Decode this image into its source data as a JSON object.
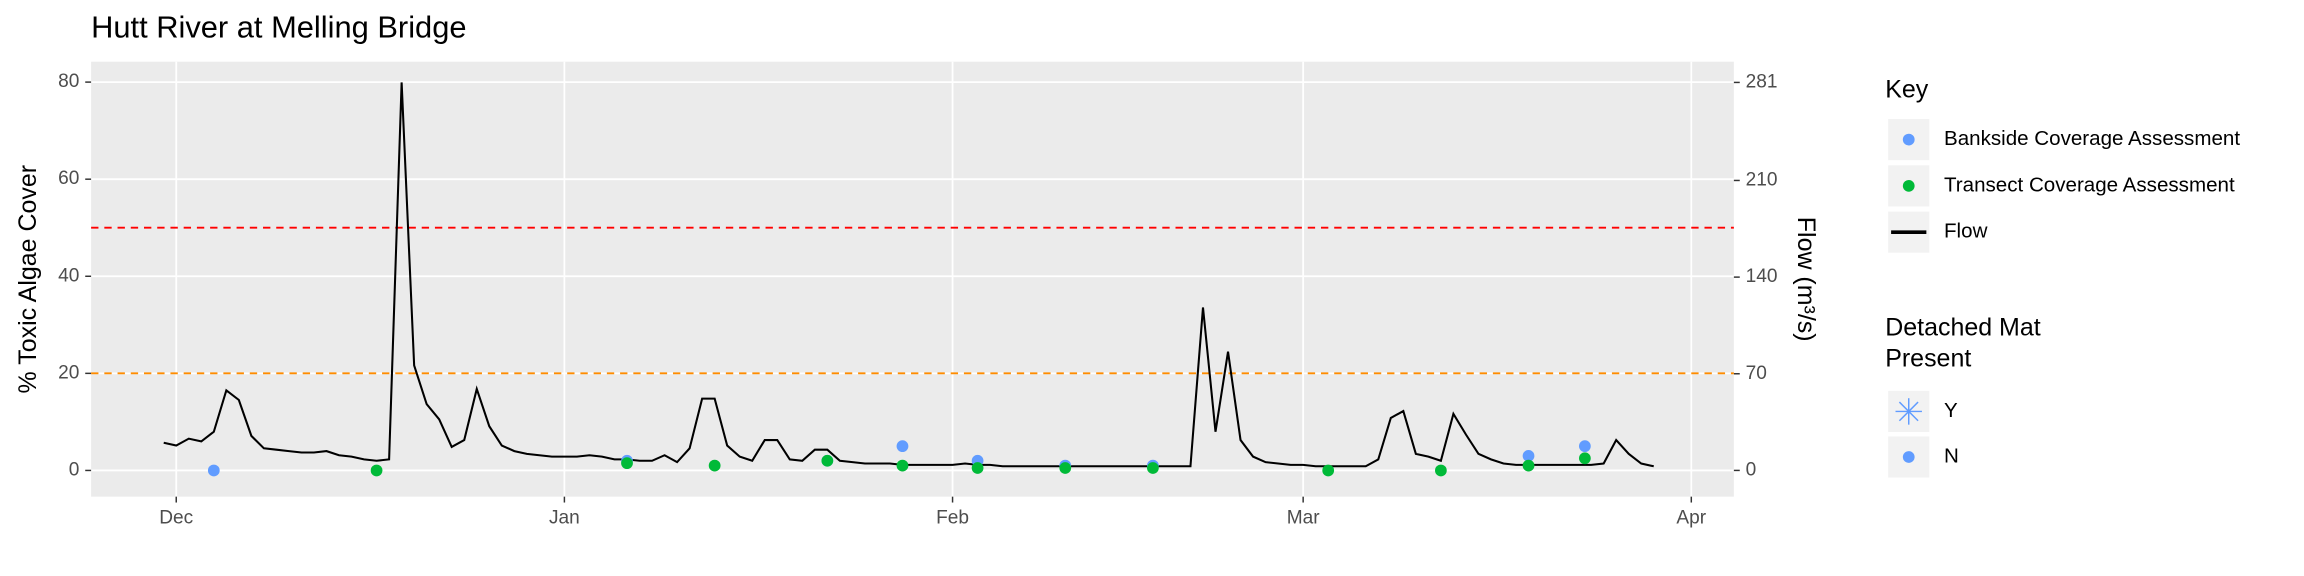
{
  "chart_data": {
    "type": "line",
    "title": "Hutt River at Melling Bridge",
    "y_label": "% Toxic Algae Cover",
    "y2_label": "Flow (m³/s)",
    "xlim": [
      -6.8,
      124.4
    ],
    "xticks": [
      {
        "value": 0,
        "label": "Dec"
      },
      {
        "value": 31,
        "label": "Jan"
      },
      {
        "value": 62,
        "label": "Feb"
      },
      {
        "value": 90,
        "label": "Mar"
      },
      {
        "value": 121,
        "label": "Apr"
      }
    ],
    "ylim": [
      -5.4,
      84.2
    ],
    "yticks": [
      0,
      20,
      40,
      60,
      80
    ],
    "y2lim": [
      -19,
      296
    ],
    "y2ticks": [
      0,
      70,
      140,
      210,
      281
    ],
    "grid": true,
    "hlines": [
      {
        "value": 50,
        "color": "#ff0000"
      },
      {
        "value": 20,
        "color": "#ff8c00"
      }
    ],
    "legend_title": "Key",
    "series": [
      {
        "name": "Bankside Coverage Assessment",
        "type": "scatter",
        "color": "#619cff",
        "x": [
          3,
          36,
          52,
          58,
          64,
          71,
          78,
          108,
          112.5
        ],
        "values": [
          0,
          2,
          2,
          5,
          2,
          1,
          1,
          3,
          5
        ]
      },
      {
        "name": "Transect Coverage Assessment",
        "type": "scatter",
        "color": "#00ba38",
        "x": [
          16,
          36,
          43,
          52,
          58,
          64,
          71,
          78,
          92,
          101,
          108,
          112.5
        ],
        "values": [
          0,
          1.5,
          1,
          2,
          1,
          0.5,
          0.5,
          0.5,
          0,
          0,
          1,
          2.5
        ]
      },
      {
        "name": "Flow",
        "type": "line",
        "axis": "y2",
        "color": "#000000",
        "x": [
          -1,
          0,
          1,
          2,
          3,
          4,
          5,
          6,
          7,
          8,
          9,
          10,
          11,
          12,
          13,
          14,
          15,
          16,
          17,
          18,
          19,
          20,
          21,
          22,
          23,
          24,
          25,
          26,
          27,
          28,
          29,
          30,
          31,
          32,
          33,
          34,
          35,
          36,
          37,
          38,
          39,
          40,
          41,
          42,
          43,
          44,
          45,
          46,
          47,
          48,
          49,
          50,
          51,
          52,
          53,
          54,
          55,
          56,
          57,
          58,
          59,
          60,
          61,
          62,
          63,
          64,
          65,
          66,
          67,
          68,
          69,
          70,
          71,
          72,
          73,
          74,
          75,
          76,
          77,
          78,
          79,
          80,
          81,
          82,
          83,
          84,
          85,
          86,
          87,
          88,
          89,
          90,
          91,
          92,
          93,
          94,
          95,
          96,
          97,
          98,
          99,
          100,
          101,
          102,
          103,
          104,
          105,
          106,
          107,
          108,
          109,
          110,
          111,
          112,
          113,
          114,
          115,
          116,
          117,
          118
        ],
        "values": [
          20,
          18,
          23,
          21,
          28,
          58,
          51,
          25,
          16,
          15,
          14,
          13,
          13,
          14,
          11,
          10,
          8,
          7,
          8,
          281,
          76,
          48,
          37,
          17,
          22,
          59,
          32,
          18,
          14,
          12,
          11,
          10,
          10,
          10,
          11,
          10,
          8,
          8,
          7,
          7,
          11,
          6,
          16,
          52,
          52,
          18,
          10,
          7,
          22,
          22,
          8,
          7,
          15,
          15,
          7,
          6,
          5,
          5,
          5,
          4,
          4,
          4,
          4,
          4,
          5,
          4,
          4,
          3,
          3,
          3,
          3,
          3,
          3,
          3,
          3,
          3,
          3,
          3,
          3,
          3,
          3,
          3,
          3,
          118,
          28,
          86,
          22,
          10,
          6,
          5,
          4,
          4,
          3,
          3,
          3,
          3,
          3,
          8,
          38,
          43,
          12,
          10,
          7,
          41,
          26,
          12,
          8,
          5,
          4,
          4,
          4,
          4,
          4,
          4,
          4,
          5,
          22,
          12,
          5,
          3
        ]
      }
    ],
    "legend2": {
      "title": [
        "Detached Mat",
        "Present"
      ],
      "items": [
        "Y",
        "N"
      ],
      "color": "#619cff"
    }
  }
}
